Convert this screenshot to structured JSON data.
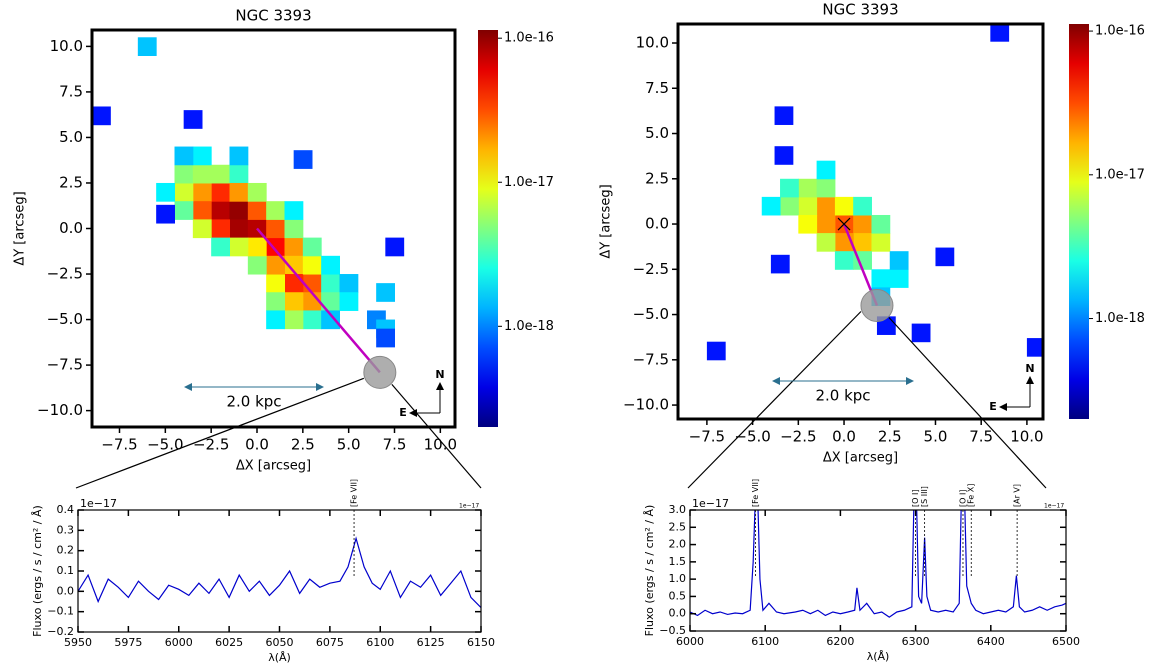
{
  "chart_data": [
    {
      "type": "heatmap",
      "title": "NGC 3393",
      "xlabel": "ΔX [arcseg]",
      "ylabel": "ΔY [arcseg]",
      "xlim": [
        -9.0,
        10.8
      ],
      "ylim": [
        -10.9,
        10.9
      ],
      "xticks": [
        {
          "value": -7.5,
          "label": "−7.5"
        },
        {
          "value": -5,
          "label": "−5.0"
        },
        {
          "value": -2.5,
          "label": "−2.5"
        },
        {
          "value": 0,
          "label": "0.0"
        },
        2.5,
        {
          "value": 5,
          "label": "5.0"
        },
        7.5,
        {
          "value": 10,
          "label": "10.0"
        }
      ],
      "yticks": [
        {
          "value": -10,
          "label": "−10.0"
        },
        {
          "value": -7.5,
          "label": "−7.5"
        },
        {
          "value": -5,
          "label": "−5.0"
        },
        {
          "value": -2.5,
          "label": "−2.5"
        },
        {
          "value": 0,
          "label": "0.0"
        },
        2.5,
        {
          "value": 5,
          "label": "5.0"
        },
        7.5,
        {
          "value": 10,
          "label": "10.0"
        }
      ],
      "x": [
        -2,
        -1,
        -1,
        0,
        1,
        -2,
        -3,
        -3,
        -2,
        0,
        1,
        2,
        2,
        3,
        3,
        2,
        2,
        1,
        1,
        3,
        -4,
        -4,
        -3,
        -2,
        -1,
        -1,
        0,
        1,
        2,
        3,
        4,
        4,
        3,
        2,
        1,
        0,
        0,
        -1,
        -3,
        -4,
        -5,
        -2,
        -3,
        -1,
        -4,
        2,
        4,
        5,
        5,
        1,
        4,
        -6,
        -8.5,
        -5,
        -3.5,
        2.5,
        7,
        6.5,
        7,
        7.5,
        7
      ],
      "y": [
        1,
        1,
        0,
        0,
        -1,
        2,
        2,
        1,
        0,
        1,
        0,
        -1,
        -2,
        -3,
        -4,
        -3,
        -4,
        -3,
        -2,
        -2,
        2,
        3,
        3,
        3,
        3,
        2,
        2,
        1,
        0,
        -1,
        -3,
        -4,
        -5,
        -5,
        -4,
        -2,
        -1,
        -1,
        0,
        1,
        2,
        -1,
        4,
        4,
        4,
        1,
        -2,
        -3,
        -4,
        -5,
        -5,
        10,
        6.2,
        0.8,
        6,
        3.8,
        -3.5,
        -5,
        -5.5,
        -1,
        -6
      ],
      "values": [
        8e-17,
        1e-16,
        9e-17,
        8e-17,
        5e-17,
        4e-17,
        2e-17,
        3e-17,
        4e-17,
        3e-17,
        3e-17,
        2e-17,
        1.5e-17,
        3e-17,
        2e-17,
        4e-17,
        1.5e-17,
        1e-17,
        2e-17,
        1e-17,
        8e-18,
        5e-18,
        6e-18,
        6e-18,
        3e-18,
        2e-17,
        6e-18,
        6e-18,
        5e-18,
        4e-18,
        3e-18,
        4e-18,
        3e-18,
        6e-18,
        5e-18,
        5e-18,
        1.2e-17,
        8e-18,
        8e-18,
        4e-18,
        2e-18,
        3e-18,
        2e-18,
        1.5e-18,
        1.5e-18,
        2e-18,
        2e-18,
        1.5e-18,
        2e-18,
        2e-18,
        1.5e-18,
        1.5e-18,
        5e-19,
        5e-19,
        5e-19,
        7e-19,
        1.5e-18,
        1e-18,
        1.5e-18,
        5e-19,
        7e-19
      ],
      "colormap": "jet",
      "colorbar": {
        "scale": "log",
        "lim": [
          2e-19,
          1.14e-16
        ],
        "ticks": [
          {
            "value": 1e-16,
            "label": "1.0e-16"
          },
          {
            "value": 1e-17,
            "label": "1.0e-17"
          },
          {
            "value": 1e-18,
            "label": "1.0e-18"
          }
        ]
      },
      "aperture": {
        "x": 6.7,
        "y": -7.9
      },
      "scale_bar": "2.0 kpc",
      "compass": {
        "north": "N",
        "east": "E"
      }
    },
    {
      "type": "line",
      "xlabel": "λ(Å)",
      "ylabel": "Fluxo (ergs / s / cm² / Å)",
      "offset_text": "1e−17",
      "xlim": [
        5950,
        6150
      ],
      "ylim": [
        -0.2,
        0.4
      ],
      "xticks": [
        5950,
        5975,
        6000,
        6025,
        6050,
        6075,
        6100,
        6125,
        6150
      ],
      "yticks": [
        {
          "value": -0.2,
          "label": "−0.2"
        },
        {
          "value": -0.1,
          "label": "−0.1"
        },
        {
          "value": 0,
          "label": "0.0"
        },
        0.1,
        0.2,
        0.3,
        0.4
      ],
      "x": [
        5950,
        5955,
        5960,
        5965,
        5970,
        5975,
        5980,
        5985,
        5990,
        5995,
        6000,
        6005,
        6010,
        6015,
        6020,
        6025,
        6030,
        6035,
        6040,
        6045,
        6050,
        6055,
        6060,
        6065,
        6070,
        6075,
        6080,
        6084,
        6088,
        6092,
        6096,
        6100,
        6105,
        6110,
        6115,
        6120,
        6125,
        6130,
        6135,
        6140,
        6145,
        6150
      ],
      "values": [
        0.0,
        0.08,
        -0.05,
        0.06,
        0.02,
        -0.03,
        0.05,
        0.0,
        -0.04,
        0.03,
        0.01,
        -0.02,
        0.04,
        -0.01,
        0.06,
        -0.03,
        0.08,
        0.0,
        0.05,
        -0.02,
        0.03,
        0.1,
        -0.01,
        0.06,
        0.02,
        0.04,
        0.05,
        0.12,
        0.26,
        0.12,
        0.04,
        0.01,
        0.1,
        -0.03,
        0.05,
        0.02,
        0.08,
        -0.02,
        0.04,
        0.1,
        -0.03,
        -0.08
      ],
      "color": "#0000cc",
      "lines": [
        {
          "label": "[Fe VII]",
          "x": 6087
        }
      ]
    },
    {
      "type": "heatmap",
      "title": "NGC 3393",
      "xlabel": "ΔX [arcseg]",
      "ylabel": "ΔY [arcseg]",
      "xlim": [
        -9.08,
        10.88
      ],
      "ylim": [
        -10.77,
        11.05
      ],
      "xticks": [
        {
          "value": -7.5,
          "label": "−7.5"
        },
        {
          "value": -5,
          "label": "−5.0"
        },
        {
          "value": -2.5,
          "label": "−2.5"
        },
        {
          "value": 0,
          "label": "0.0"
        },
        2.5,
        {
          "value": 5,
          "label": "5.0"
        },
        7.5,
        {
          "value": 10,
          "label": "10.0"
        }
      ],
      "yticks": [
        {
          "value": -10,
          "label": "−10.0"
        },
        {
          "value": -7.5,
          "label": "−7.5"
        },
        {
          "value": -5,
          "label": "−5.0"
        },
        {
          "value": -2.5,
          "label": "−2.5"
        },
        {
          "value": 0,
          "label": "0.0"
        },
        2.5,
        {
          "value": 5,
          "label": "5.0"
        },
        7.5,
        {
          "value": 10,
          "label": "10.0"
        }
      ],
      "x": [
        -1,
        0,
        -1,
        1,
        1,
        0,
        -2,
        -2,
        -3,
        -1,
        0,
        2,
        2,
        -2,
        -3,
        -1,
        1,
        2,
        3,
        2,
        3,
        -4,
        0,
        1,
        -1,
        -3.3,
        -3.3,
        -3.5,
        5.5,
        4.2,
        2.3,
        -7,
        10.5,
        8.5
      ],
      "y": [
        1,
        0,
        0,
        0,
        -1,
        -1,
        1,
        2,
        1,
        2,
        1,
        -1,
        0,
        0,
        2,
        -1,
        1,
        -3,
        -3,
        -4,
        -2,
        1,
        -2,
        -2,
        3,
        6,
        3.8,
        -2.2,
        -1.8,
        -6,
        -5.6,
        -7,
        -6.8,
        10.6
      ],
      "values": [
        2e-17,
        3e-17,
        2e-17,
        2e-17,
        1.5e-17,
        2e-17,
        8e-18,
        6e-18,
        5e-18,
        5e-18,
        1e-17,
        8e-18,
        4e-18,
        1e-17,
        3e-18,
        7e-18,
        3e-18,
        2e-18,
        2e-18,
        1.5e-18,
        1.5e-18,
        2e-18,
        3e-18,
        4e-18,
        2e-18,
        5e-19,
        5e-19,
        5e-19,
        5e-19,
        5e-19,
        5e-19,
        5e-19,
        5e-19,
        5e-19
      ],
      "colormap": "jet",
      "colorbar": {
        "scale": "log",
        "lim": [
          2e-19,
          1.12e-16
        ],
        "ticks": [
          {
            "value": 1e-16,
            "label": "1.0e-16"
          },
          {
            "value": 1e-17,
            "label": "1.0e-17"
          },
          {
            "value": 1e-18,
            "label": "1.0e-18"
          }
        ]
      },
      "aperture": {
        "x": 1.8,
        "y": -4.5
      },
      "scale_bar": "2.0 kpc",
      "compass": {
        "north": "N",
        "east": "E"
      }
    },
    {
      "type": "line",
      "xlabel": "λ(Å)",
      "ylabel": "Fluxo (ergs / s / cm² / Å)",
      "offset_text": "1e−17",
      "xlim": [
        6000,
        6500
      ],
      "ylim": [
        -0.5,
        3.0
      ],
      "xticks": [
        6000,
        6100,
        6200,
        6300,
        6400,
        6500
      ],
      "yticks": [
        {
          "value": -0.5,
          "label": "−0.5"
        },
        {
          "value": 0,
          "label": "0.0"
        },
        0.5,
        {
          "value": 1,
          "label": "1.0"
        },
        1.5,
        {
          "value": 2,
          "label": "2.0"
        },
        2.5,
        {
          "value": 3,
          "label": "3.0"
        }
      ],
      "x": [
        6000,
        6010,
        6020,
        6030,
        6040,
        6050,
        6060,
        6070,
        6080,
        6084,
        6087,
        6090,
        6093,
        6097,
        6105,
        6115,
        6125,
        6140,
        6150,
        6160,
        6170,
        6180,
        6190,
        6200,
        6210,
        6219,
        6222,
        6226,
        6235,
        6245,
        6255,
        6265,
        6275,
        6285,
        6295,
        6298,
        6301,
        6304,
        6308,
        6312,
        6315,
        6320,
        6330,
        6340,
        6350,
        6358,
        6361,
        6365,
        6368,
        6374,
        6380,
        6390,
        6400,
        6410,
        6420,
        6430,
        6434,
        6438,
        6445,
        6455,
        6465,
        6475,
        6485,
        6495,
        6500
      ],
      "values": [
        0.05,
        -0.05,
        0.1,
        0.0,
        0.05,
        -0.02,
        0.02,
        0.0,
        0.1,
        1.5,
        3.4,
        3.4,
        1.0,
        0.1,
        0.3,
        0.05,
        0.0,
        0.05,
        0.1,
        0.0,
        0.1,
        -0.05,
        0.05,
        0.0,
        0.05,
        0.1,
        0.75,
        0.1,
        0.3,
        0.0,
        0.05,
        -0.1,
        0.05,
        0.1,
        0.2,
        3.5,
        3.5,
        0.5,
        0.3,
        2.2,
        0.5,
        0.1,
        0.05,
        0.1,
        0.05,
        0.3,
        3.5,
        3.5,
        0.8,
        0.3,
        0.1,
        0.0,
        0.05,
        0.1,
        0.05,
        0.2,
        1.1,
        0.2,
        0.05,
        0.1,
        0.2,
        0.1,
        0.2,
        0.25,
        0.3
      ],
      "color": "#0000cc",
      "lines": [
        {
          "label": "[Fe VII]",
          "x": 6087
        },
        {
          "label": "[O I]",
          "x": 6300
        },
        {
          "label": "[S III]",
          "x": 6312
        },
        {
          "label": "[O I]",
          "x": 6363
        },
        {
          "label": "[Fe X]",
          "x": 6374
        },
        {
          "label": "[Ar V]",
          "x": 6435
        }
      ]
    }
  ]
}
